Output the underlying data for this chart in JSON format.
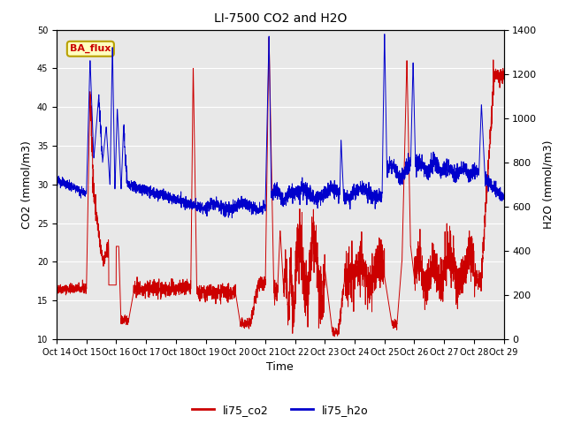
{
  "title": "LI-7500 CO2 and H2O",
  "xlabel": "Time",
  "ylabel_left": "CO2 (mmol/m3)",
  "ylabel_right": "H2O (mmol/m3)",
  "xlim": [
    0,
    360
  ],
  "ylim_left": [
    10,
    50
  ],
  "ylim_right": [
    0,
    1400
  ],
  "annotation_text": "BA_flux",
  "annotation_bg": "#ffffc0",
  "annotation_border": "#b8a000",
  "annotation_text_color": "#cc0000",
  "co2_color": "#cc0000",
  "h2o_color": "#0000cc",
  "bg_color": "#e8e8e8",
  "xtick_labels": [
    "Oct 14",
    "Oct 15",
    "Oct 16",
    "Oct 17",
    "Oct 18",
    "Oct 19",
    "Oct 20",
    "Oct 21",
    "Oct 22",
    "Oct 23",
    "Oct 24",
    "Oct 25",
    "Oct 26",
    "Oct 27",
    "Oct 28",
    "Oct 29"
  ],
  "xtick_positions": [
    0,
    24,
    48,
    72,
    96,
    120,
    144,
    168,
    192,
    216,
    240,
    264,
    288,
    312,
    336,
    360
  ],
  "ytick_left": [
    10,
    15,
    20,
    25,
    30,
    35,
    40,
    45,
    50
  ],
  "ytick_right": [
    0,
    200,
    400,
    600,
    800,
    1000,
    1200,
    1400
  ],
  "grid_color": "#ffffff",
  "legend_labels": [
    "li75_co2",
    "li75_h2o"
  ]
}
